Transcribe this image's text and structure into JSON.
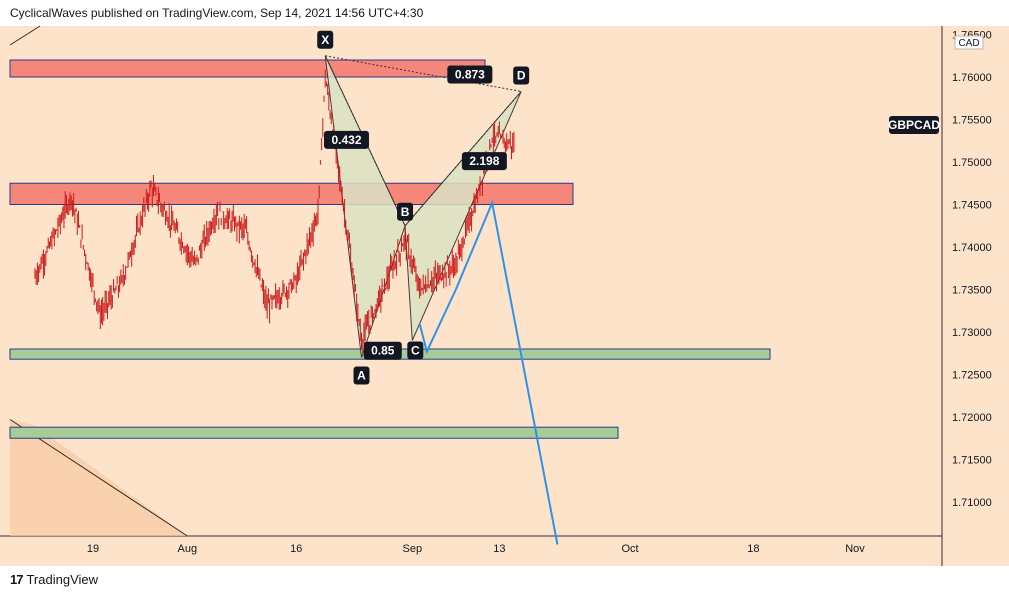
{
  "header": {
    "text": "CyclicalWaves published on TradingView.com, Sep 14, 2021 14:56 UTC+4:30"
  },
  "footer": {
    "logo_glyph": "17",
    "brand": "TradingView"
  },
  "colors": {
    "background": "#fde3c9",
    "red_zone": "#f5877a",
    "green_zone": "#a6cc98",
    "zone_border": "#2b3a8c",
    "pattern_fill": "#dbe2c4",
    "projection": "#2e93e8",
    "candle": "#cc1a1a",
    "label_bg": "#131722",
    "label_fg": "#ffffff"
  },
  "chart_data": {
    "type": "candlestick",
    "symbol": "GBPCAD",
    "currency": "CAD",
    "y_ticks": [
      "1.76500",
      "1.76000",
      "1.75500",
      "1.75000",
      "1.74500",
      "1.74000",
      "1.73500",
      "1.73000",
      "1.72500",
      "1.72000",
      "1.71500",
      "1.71000"
    ],
    "x_ticks": [
      "19",
      "Aug",
      "16",
      "Sep",
      "13",
      "Oct",
      "18",
      "Nov"
    ],
    "ylim": [
      1.706,
      1.766
    ],
    "last_price_label": "GBPCAD",
    "zones": [
      {
        "color": "red",
        "from": 1.76,
        "to": 1.762
      },
      {
        "color": "red",
        "from": 1.745,
        "to": 1.7475
      },
      {
        "color": "green",
        "from": 1.7268,
        "to": 1.728
      },
      {
        "color": "green",
        "from": 1.7175,
        "to": 1.7188
      }
    ],
    "harmonic_pattern": {
      "points": [
        {
          "label": "X",
          "date": "2021-08-20",
          "price": 1.7625
        },
        {
          "label": "A",
          "date": "2021-08-25",
          "price": 1.727
        },
        {
          "label": "B",
          "date": "2021-08-31",
          "price": 1.7425
        },
        {
          "label": "C",
          "date": "2021-09-01",
          "price": 1.729
        },
        {
          "label": "D",
          "date": "2021-09-16",
          "price": 1.7583
        }
      ],
      "ratios": [
        {
          "text": "0.432",
          "date": "2021-08-21",
          "price": 1.7526
        },
        {
          "text": "0.85",
          "date": "2021-08-26",
          "price": 1.7278
        },
        {
          "text": "2.198",
          "date": "2021-09-09",
          "price": 1.7501
        },
        {
          "text": "0.873",
          "date": "2021-09-07",
          "price": 1.7603
        }
      ]
    },
    "projection": [
      {
        "date": "2021-09-02",
        "price": 1.731
      },
      {
        "date": "2021-09-03",
        "price": 1.7277
      },
      {
        "date": "2021-09-07",
        "price": 1.735
      },
      {
        "date": "2021-09-12",
        "price": 1.7452
      },
      {
        "date": "2021-09-21",
        "price": 1.705
      }
    ],
    "trendline": [
      {
        "date": "2021-07-11",
        "price": 1.719
      },
      {
        "date": "2021-08-01",
        "price": 1.705
      }
    ]
  }
}
